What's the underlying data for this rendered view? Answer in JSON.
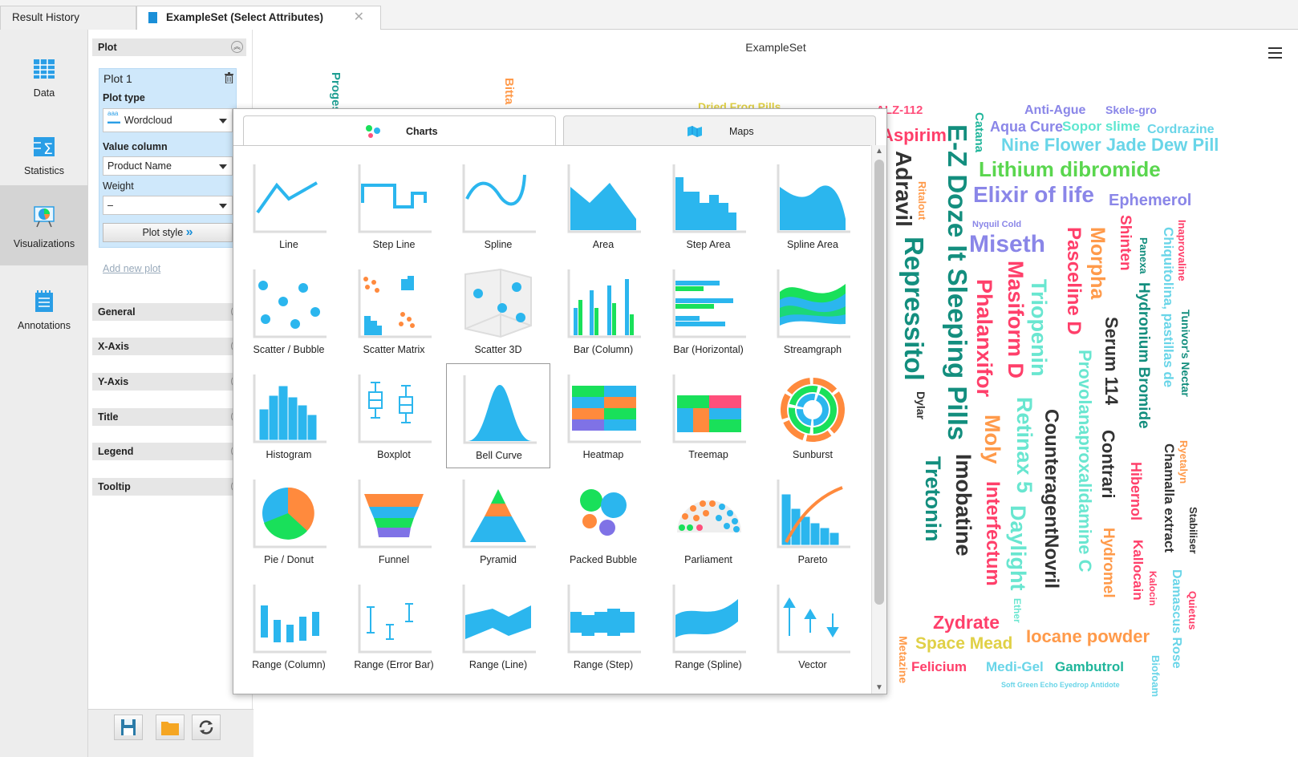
{
  "tabs": {
    "history": "Result History",
    "exampleset": "ExampleSet (Select Attributes)",
    "close_glyph": "✕"
  },
  "nav": [
    {
      "label": "Data",
      "icon": "data-table-icon"
    },
    {
      "label": "Statistics",
      "icon": "statistics-icon"
    },
    {
      "label": "Visualizations",
      "icon": "visualizations-icon",
      "active": true
    },
    {
      "label": "Annotations",
      "icon": "annotations-icon"
    }
  ],
  "config": {
    "plot_section": "Plot",
    "plot_name": "Plot 1",
    "plot_type_label": "Plot type",
    "plot_type_value": "Wordcloud",
    "value_column_label": "Value column",
    "value_column_value": "Product Name",
    "weight_label": "Weight",
    "weight_value": "–",
    "plot_style": "Plot style",
    "add_new_plot": "Add new plot",
    "sections": [
      "General",
      "X-Axis",
      "Y-Axis",
      "Title",
      "Legend",
      "Tooltip"
    ]
  },
  "main": {
    "title": "ExampleSet"
  },
  "popup": {
    "tab_charts": "Charts",
    "tab_maps": "Maps",
    "selected": "Bell Curve",
    "charts": [
      "Line",
      "Step Line",
      "Spline",
      "Area",
      "Step Area",
      "Spline Area",
      "Scatter / Bubble",
      "Scatter Matrix",
      "Scatter 3D",
      "Bar (Column)",
      "Bar (Horizontal)",
      "Streamgraph",
      "Histogram",
      "Boxplot",
      "Bell Curve",
      "Heatmap",
      "Treemap",
      "Sunburst",
      "Pie / Donut",
      "Funnel",
      "Pyramid",
      "Packed Bubble",
      "Parliament",
      "Pareto",
      "Range (Column)",
      "Range (Error Bar)",
      "Range (Line)",
      "Range (Step)",
      "Range (Spline)",
      "Vector"
    ]
  },
  "colors": {
    "chart_blue": "#2bb6ee",
    "green": "#19e05a",
    "orange": "#ff8a3d",
    "purple": "#7f72e6"
  },
  "wordcloud": [
    {
      "text": "Progesterone",
      "color": "#1e9e92"
    },
    {
      "text": "Bitta",
      "color": "#ff9a4a"
    },
    {
      "text": "Dried Frog Pills",
      "color": "#e0d046"
    },
    {
      "text": "ALZ-112",
      "color": "#ff4f7b"
    },
    {
      "text": "Aspirim",
      "color": "#ff3f6a"
    },
    {
      "text": "Anti-Ague",
      "color": "#8a86e8"
    },
    {
      "text": "Skele-gro",
      "color": "#8a86e8"
    },
    {
      "text": "Aqua Cure",
      "color": "#8a86e8"
    },
    {
      "text": "Sopor slime",
      "color": "#5ee6d0"
    },
    {
      "text": "Cordrazine",
      "color": "#69d5e8"
    },
    {
      "text": "Catana",
      "color": "#1fb59a"
    },
    {
      "text": "E-Z Doze It Sleeping Pills",
      "color": "#138e7e"
    },
    {
      "text": "Adravil",
      "color": "#333333"
    },
    {
      "text": "Nine Flower Jade Dew Pill",
      "color": "#69d5e8"
    },
    {
      "text": "Lithium dibromide",
      "color": "#5ad64e"
    },
    {
      "text": "Elixir of life",
      "color": "#8a86e8"
    },
    {
      "text": "Ephemerol",
      "color": "#8a86e8"
    },
    {
      "text": "Ritalout",
      "color": "#ff9a4a"
    },
    {
      "text": "Nyquil Cold",
      "color": "#8a86e8"
    },
    {
      "text": "Miseth",
      "color": "#8a86e8"
    },
    {
      "text": "Repressitol",
      "color": "#138e7e"
    },
    {
      "text": "Imobatine",
      "color": "#333333"
    },
    {
      "text": "Phalanxifor",
      "color": "#ff3f6a"
    },
    {
      "text": "Masiform D",
      "color": "#ff3f6a"
    },
    {
      "text": "Triopenin",
      "color": "#69e6d0"
    },
    {
      "text": "Pasceline D",
      "color": "#ff3f6a"
    },
    {
      "text": "Morpha",
      "color": "#ff9a4a"
    },
    {
      "text": "Shinten",
      "color": "#ff3f6a"
    },
    {
      "text": "Panexa",
      "color": "#138e7e"
    },
    {
      "text": "Hydronium Bromide",
      "color": "#138e7e"
    },
    {
      "text": "Chiquitolina, pastillas de",
      "color": "#69d5e8"
    },
    {
      "text": "Inaprovaline",
      "color": "#ff3f6a"
    },
    {
      "text": "Tunivor's Nectar",
      "color": "#138e7e"
    },
    {
      "text": "Serum 114",
      "color": "#333333"
    },
    {
      "text": "Provolanaproxalidamine C",
      "color": "#69e6d0"
    },
    {
      "text": "Dylar",
      "color": "#333333"
    },
    {
      "text": "Tretonin",
      "color": "#138e7e"
    },
    {
      "text": "Moly",
      "color": "#ff9a4a"
    },
    {
      "text": "Retinax 5",
      "color": "#69e6d0"
    },
    {
      "text": "CounteragentNovril",
      "color": "#333333"
    },
    {
      "text": "Contrari",
      "color": "#333333"
    },
    {
      "text": "Hibernol",
      "color": "#ff3f6a"
    },
    {
      "text": "Chamalla extract",
      "color": "#333333"
    },
    {
      "text": "Ryetalyn",
      "color": "#ff9a4a"
    },
    {
      "text": "Interfectum",
      "color": "#ff3f6a"
    },
    {
      "text": "Daylight",
      "color": "#69e6d0"
    },
    {
      "text": "Hydromel",
      "color": "#ff9a4a"
    },
    {
      "text": "Kallocain",
      "color": "#ff3f6a"
    },
    {
      "text": "Stabiliser",
      "color": "#333333"
    },
    {
      "text": "Kalocin",
      "color": "#ff3f6a"
    },
    {
      "text": "Damascus Rose",
      "color": "#69d5e8"
    },
    {
      "text": "Quietus",
      "color": "#ff3f6a"
    },
    {
      "text": "Ether",
      "color": "#69e6d0"
    },
    {
      "text": "Zydrate",
      "color": "#ff3f6a"
    },
    {
      "text": "Space Mead",
      "color": "#e0d046"
    },
    {
      "text": "Iocane powder",
      "color": "#ff9a4a"
    },
    {
      "text": "Metazine",
      "color": "#ff9a4a"
    },
    {
      "text": "Felicium",
      "color": "#ff3f6a"
    },
    {
      "text": "Medi-Gel",
      "color": "#69d5e8"
    },
    {
      "text": "Gambutrol",
      "color": "#1fb59a"
    },
    {
      "text": "Biofoam",
      "color": "#69d5e8"
    },
    {
      "text": "Soft Green Echo Eyedrop Antidote",
      "color": "#69d5e8"
    }
  ]
}
